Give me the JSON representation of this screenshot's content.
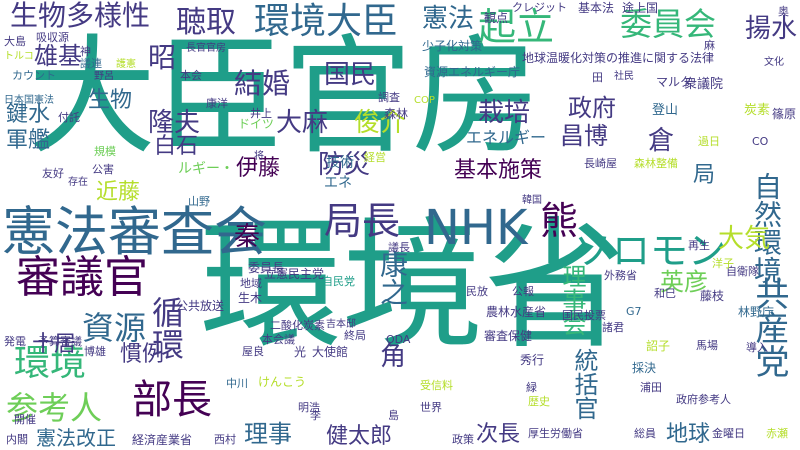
{
  "colors": {
    "background": "#ffffff",
    "palette": [
      "#1f9e89",
      "#35b779",
      "#31688e",
      "#443a83",
      "#440154",
      "#6ece58",
      "#b5de2b",
      "#fde725",
      "#26828e"
    ]
  },
  "words": [
    {
      "text": "大臣官房",
      "color": "#1f9e89"
    },
    {
      "text": "環境省",
      "color": "#1f9e89"
    },
    {
      "text": "憲法審査会",
      "color": "#31688e"
    },
    {
      "text": "NHK",
      "color": "#31688e"
    },
    {
      "text": "審議官",
      "color": "#440154"
    },
    {
      "text": "環境大臣",
      "color": "#31688e"
    },
    {
      "text": "起立",
      "color": "#35b779"
    },
    {
      "text": "委員会",
      "color": "#35b779"
    },
    {
      "text": "生物多様性",
      "color": "#443a83"
    },
    {
      "text": "聴取",
      "color": "#443a83"
    },
    {
      "text": "憲法",
      "color": "#31688e"
    },
    {
      "text": "揚水",
      "color": "#443a83"
    },
    {
      "text": "局長",
      "color": "#443a83"
    },
    {
      "text": "ソロモン",
      "color": "#1f9e89"
    },
    {
      "text": "熊",
      "color": "#440154"
    },
    {
      "text": "環境",
      "color": "#35b779"
    },
    {
      "text": "資源",
      "color": "#31688e"
    },
    {
      "text": "参考人",
      "color": "#6ece58"
    },
    {
      "text": "部長",
      "color": "#440154"
    },
    {
      "text": "循環",
      "color": "#443a83"
    },
    {
      "text": "共産党",
      "color": "#31688e"
    },
    {
      "text": "自然環境",
      "color": "#31688e"
    },
    {
      "text": "大気",
      "color": "#b5de2b"
    },
    {
      "text": "英彦",
      "color": "#6ece58"
    },
    {
      "text": "康之",
      "color": "#31688e"
    },
    {
      "text": "防災",
      "color": "#443a83"
    },
    {
      "text": "結婚",
      "color": "#443a83"
    },
    {
      "text": "国民",
      "color": "#443a83"
    },
    {
      "text": "栽培",
      "color": "#443a83"
    },
    {
      "text": "政府",
      "color": "#443a83"
    },
    {
      "text": "昌博",
      "color": "#443a83"
    },
    {
      "text": "俊介",
      "color": "#b5de2b"
    },
    {
      "text": "基本施策",
      "color": "#440154"
    },
    {
      "text": "倉",
      "color": "#443a83"
    },
    {
      "text": "大麻",
      "color": "#443a83"
    },
    {
      "text": "隆夫",
      "color": "#443a83"
    },
    {
      "text": "白石",
      "color": "#443a83"
    },
    {
      "text": "昭",
      "color": "#443a83"
    },
    {
      "text": "雄基",
      "color": "#443a83"
    },
    {
      "text": "鍵水",
      "color": "#31688e"
    },
    {
      "text": "軍艦",
      "color": "#31688e"
    },
    {
      "text": "伊藤",
      "color": "#440154"
    },
    {
      "text": "近藤",
      "color": "#b5de2b"
    },
    {
      "text": "秦",
      "color": "#440154"
    },
    {
      "text": "十居",
      "color": "#443a83"
    },
    {
      "text": "慣例",
      "color": "#443a83"
    },
    {
      "text": "理事会",
      "color": "#35b779"
    },
    {
      "text": "統括官",
      "color": "#31688e"
    },
    {
      "text": "角",
      "color": "#443a83"
    },
    {
      "text": "次長",
      "color": "#443a83"
    },
    {
      "text": "健太郎",
      "color": "#443a83"
    },
    {
      "text": "地球",
      "color": "#31688e"
    },
    {
      "text": "理事",
      "color": "#31688e"
    },
    {
      "text": "憲法改正",
      "color": "#31688e"
    },
    {
      "text": "局",
      "color": "#31688e"
    },
    {
      "text": "生物",
      "color": "#31688e"
    },
    {
      "text": "エネルギー",
      "color": "#31688e"
    },
    {
      "text": "技術",
      "color": "#31688e"
    },
    {
      "text": "ルギー・",
      "color": "#6ece58"
    },
    {
      "text": "エネ",
      "color": "#31688e"
    },
    {
      "text": "基本法",
      "color": "#443a83"
    },
    {
      "text": "途上国",
      "color": "#443a83"
    },
    {
      "text": "観点",
      "color": "#443a83"
    },
    {
      "text": "クレジット",
      "color": "#443a83"
    },
    {
      "text": "少子化対策",
      "color": "#31688e"
    },
    {
      "text": "地球温暖化対策の推進に関する法律",
      "color": "#443a83"
    },
    {
      "text": "資源エネルギー庁",
      "color": "#31688e"
    },
    {
      "text": "マルタ",
      "color": "#443a83"
    },
    {
      "text": "衆議院",
      "color": "#443a83"
    },
    {
      "text": "登山",
      "color": "#31688e"
    },
    {
      "text": "炭素",
      "color": "#b5de2b"
    },
    {
      "text": "篠原",
      "color": "#443a83"
    },
    {
      "text": "過日",
      "color": "#b5de2b"
    },
    {
      "text": "CO",
      "color": "#443a83"
    },
    {
      "text": "森林",
      "color": "#443a83"
    },
    {
      "text": "調査",
      "color": "#443a83"
    },
    {
      "text": "井上",
      "color": "#443a83"
    },
    {
      "text": "ドイツ",
      "color": "#6ece58"
    },
    {
      "text": "吸収源",
      "color": "#443a83"
    },
    {
      "text": "カウント",
      "color": "#31688e"
    },
    {
      "text": "日本国憲法",
      "color": "#31688e"
    },
    {
      "text": "長官官房",
      "color": "#443a83"
    },
    {
      "text": "議連",
      "color": "#31688e"
    },
    {
      "text": "本会",
      "color": "#443a83"
    },
    {
      "text": "自民党",
      "color": "#1f9e89"
    },
    {
      "text": "大島",
      "color": "#443a83"
    },
    {
      "text": "委員長",
      "color": "#443a83"
    },
    {
      "text": "地域",
      "color": "#443a83"
    },
    {
      "text": "公共放送",
      "color": "#443a83"
    },
    {
      "text": "生木",
      "color": "#443a83"
    },
    {
      "text": "立憲民主党",
      "color": "#443a83"
    },
    {
      "text": "二酸化炭素",
      "color": "#443a83"
    },
    {
      "text": "吉本邸",
      "color": "#443a83"
    },
    {
      "text": "光",
      "color": "#443a83"
    },
    {
      "text": "大使館",
      "color": "#443a83"
    },
    {
      "text": "ODA",
      "color": "#443a83"
    },
    {
      "text": "審査保健",
      "color": "#443a83"
    },
    {
      "text": "農林水産省",
      "color": "#443a83"
    },
    {
      "text": "国民投票",
      "color": "#443a83"
    },
    {
      "text": "外務省",
      "color": "#443a83"
    },
    {
      "text": "和巳",
      "color": "#443a83"
    },
    {
      "text": "藤枝",
      "color": "#443a83"
    },
    {
      "text": "G7",
      "color": "#31688e"
    },
    {
      "text": "林野庁",
      "color": "#31688e"
    },
    {
      "text": "諸君",
      "color": "#443a83"
    },
    {
      "text": "詔子",
      "color": "#b5de2b"
    },
    {
      "text": "馬場",
      "color": "#443a83"
    },
    {
      "text": "採決",
      "color": "#31688e"
    },
    {
      "text": "浦田",
      "color": "#443a83"
    },
    {
      "text": "秀行",
      "color": "#443a83"
    },
    {
      "text": "政府参考人",
      "color": "#443a83"
    },
    {
      "text": "歴史",
      "color": "#b5de2b"
    },
    {
      "text": "世界",
      "color": "#443a83"
    },
    {
      "text": "政策",
      "color": "#443a83"
    },
    {
      "text": "厚生労働省",
      "color": "#443a83"
    },
    {
      "text": "総員",
      "color": "#443a83"
    },
    {
      "text": "金曜日",
      "color": "#443a83"
    },
    {
      "text": "赤瀬",
      "color": "#b5de2b"
    },
    {
      "text": "経済産業省",
      "color": "#443a83"
    },
    {
      "text": "西村",
      "color": "#443a83"
    },
    {
      "text": "明浩",
      "color": "#443a83"
    },
    {
      "text": "内閣",
      "color": "#443a83"
    },
    {
      "text": "開催",
      "color": "#443a83"
    },
    {
      "text": "友好",
      "color": "#443a83"
    },
    {
      "text": "発電",
      "color": "#443a83"
    },
    {
      "text": "予算審議",
      "color": "#443a83"
    },
    {
      "text": "博雄",
      "color": "#443a83"
    },
    {
      "text": "屋良",
      "color": "#443a83"
    },
    {
      "text": "中川",
      "color": "#31688e"
    },
    {
      "text": "島",
      "color": "#443a83"
    },
    {
      "text": "李",
      "color": "#443a83"
    },
    {
      "text": "再生",
      "color": "#443a83"
    },
    {
      "text": "自衛隊",
      "color": "#443a83"
    },
    {
      "text": "公報",
      "color": "#443a83"
    },
    {
      "text": "民放",
      "color": "#443a83"
    },
    {
      "text": "韓国",
      "color": "#443a83"
    },
    {
      "text": "長崎屋",
      "color": "#443a83"
    },
    {
      "text": "森林整備",
      "color": "#b5de2b"
    },
    {
      "text": "経営",
      "color": "#b5de2b"
    },
    {
      "text": "けんこう",
      "color": "#b5de2b"
    },
    {
      "text": "受信料",
      "color": "#b5de2b"
    },
    {
      "text": "公害",
      "color": "#443a83"
    },
    {
      "text": "規模",
      "color": "#6ece58"
    },
    {
      "text": "存在",
      "color": "#443a83"
    },
    {
      "text": "山野",
      "color": "#31688e"
    },
    {
      "text": "付託",
      "color": "#443a83"
    },
    {
      "text": "康洋",
      "color": "#443a83"
    },
    {
      "text": "本会議",
      "color": "#443a83"
    },
    {
      "text": "議長",
      "color": "#443a83"
    },
    {
      "text": "終局",
      "color": "#443a83"
    },
    {
      "text": "緑",
      "color": "#443a83"
    },
    {
      "text": "洋子",
      "color": "#b5de2b"
    },
    {
      "text": "導入",
      "color": "#443a83"
    },
    {
      "text": "トルコ",
      "color": "#b5de2b"
    },
    {
      "text": "護憲",
      "color": "#b5de2b"
    },
    {
      "text": "神",
      "color": "#443a83"
    },
    {
      "text": "野呂",
      "color": "#443a83"
    },
    {
      "text": "COP",
      "color": "#b5de2b"
    },
    {
      "text": "将",
      "color": "#443a83"
    },
    {
      "text": "麻",
      "color": "#443a83"
    },
    {
      "text": "奥",
      "color": "#443a83"
    },
    {
      "text": "田",
      "color": "#443a83"
    },
    {
      "text": "文化",
      "color": "#443a83"
    },
    {
      "text": "社民",
      "color": "#443a83"
    }
  ]
}
